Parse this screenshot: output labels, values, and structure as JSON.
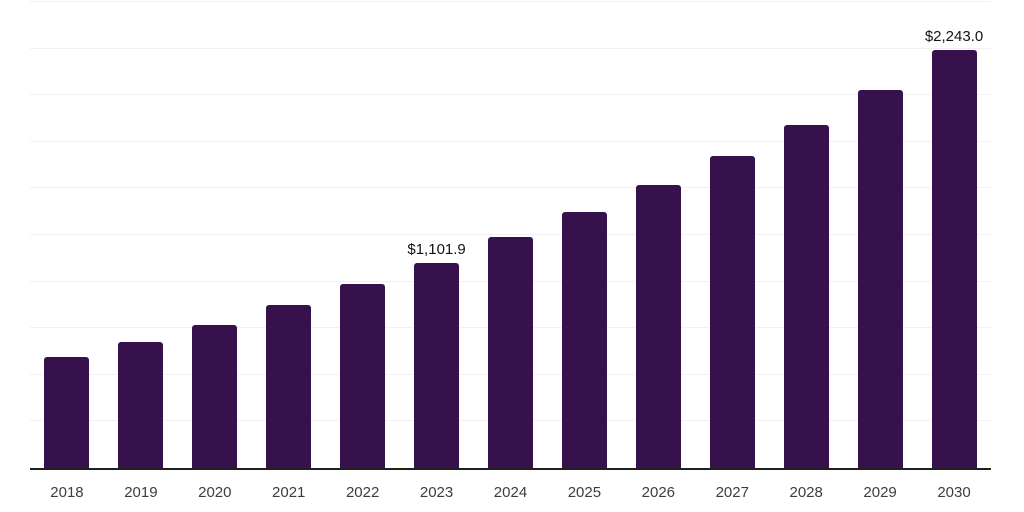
{
  "chart_data": {
    "type": "bar",
    "title": "",
    "xlabel": "",
    "ylabel": "",
    "categories": [
      "2018",
      "2019",
      "2020",
      "2021",
      "2022",
      "2023",
      "2024",
      "2025",
      "2026",
      "2027",
      "2028",
      "2029",
      "2030"
    ],
    "values": [
      598.0,
      673.5,
      768.0,
      872.5,
      987.0,
      1101.9,
      1238.5,
      1371.5,
      1516.5,
      1672.0,
      1840.5,
      2026.0,
      2243.0
    ],
    "data_labels": {
      "2023": "$1,101.9",
      "2030": "$2,243.0"
    },
    "ylim": [
      0,
      2500
    ],
    "grid_interval": 250,
    "grid": true,
    "legend": false,
    "y_axis_ticks_visible": false
  },
  "style": {
    "background": "#ffffff",
    "bar_color": "#36114B",
    "grid_color": "#f1f1f3",
    "axis_color": "#1f1f1f",
    "value_label_color": "#111111",
    "x_label_color": "#3d3d3d"
  }
}
